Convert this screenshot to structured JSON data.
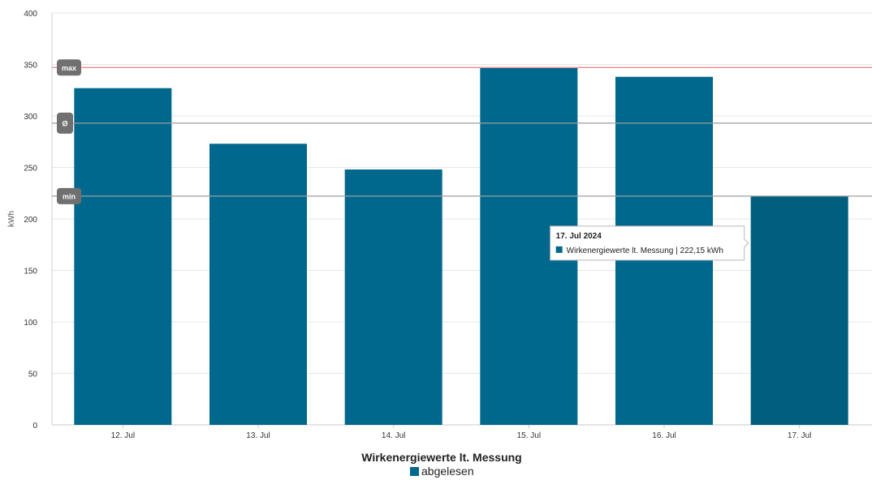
{
  "chart_data": {
    "type": "bar",
    "categories": [
      "12. Jul",
      "13. Jul",
      "14. Jul",
      "15. Jul",
      "16. Jul",
      "17. Jul"
    ],
    "series": [
      {
        "name": "abgelesen",
        "values": [
          327,
          273,
          248,
          347,
          338,
          222.15
        ]
      }
    ],
    "ylabel": "kWh",
    "ylim": [
      0,
      400
    ],
    "yticks": [
      "0",
      "50",
      "100",
      "150",
      "200",
      "250",
      "300",
      "350",
      "400"
    ],
    "grid": true,
    "reference_lines": [
      {
        "label": "max",
        "value": 347,
        "color": "#ef8a8a"
      },
      {
        "label": "Ø",
        "value": 293,
        "color": "#9e9e9e"
      },
      {
        "label": "min",
        "value": 222.15,
        "color": "#9e9e9e"
      }
    ],
    "tooltip": {
      "category_index": 5,
      "title": "17. Jul 2024",
      "text": "Wirkenergiewerte lt. Messung | 222,15 kWh"
    },
    "legend": {
      "title": "Wirkenergiewerte lt. Messung",
      "position": "bottom-center"
    }
  },
  "colors": {
    "bar": "#00688c",
    "bar_hover": "#005f7f",
    "grid": "#e6e6e6",
    "ref_label_bg": "#707070"
  }
}
